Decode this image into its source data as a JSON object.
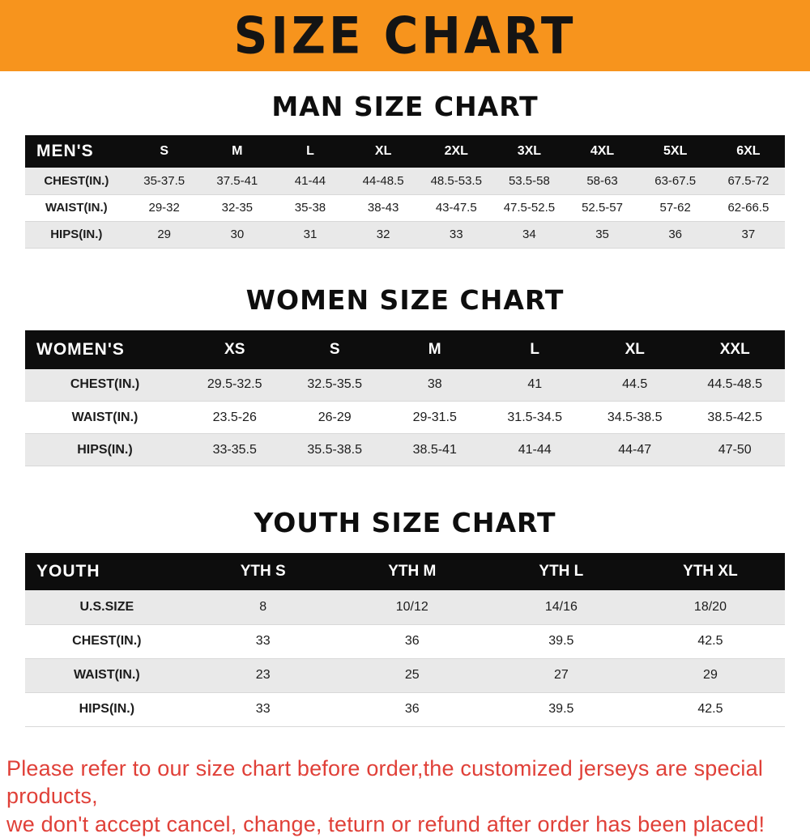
{
  "banner": {
    "title": "SIZE CHART"
  },
  "sections": [
    {
      "heading": "MAN SIZE CHART",
      "table": {
        "header": [
          "MEN'S",
          "S",
          "M",
          "L",
          "XL",
          "2XL",
          "3XL",
          "4XL",
          "5XL",
          "6XL"
        ],
        "rows": [
          [
            "CHEST(IN.)",
            "35-37.5",
            "37.5-41",
            "41-44",
            "44-48.5",
            "48.5-53.5",
            "53.5-58",
            "58-63",
            "63-67.5",
            "67.5-72"
          ],
          [
            "WAIST(IN.)",
            "29-32",
            "32-35",
            "35-38",
            "38-43",
            "43-47.5",
            "47.5-52.5",
            "52.5-57",
            "57-62",
            "62-66.5"
          ],
          [
            "HIPS(IN.)",
            "29",
            "30",
            "31",
            "32",
            "33",
            "34",
            "35",
            "36",
            "37"
          ]
        ]
      }
    },
    {
      "heading": "WOMEN SIZE CHART",
      "table": {
        "header": [
          "WOMEN'S",
          "XS",
          "S",
          "M",
          "L",
          "XL",
          "XXL"
        ],
        "rows": [
          [
            "CHEST(IN.)",
            "29.5-32.5",
            "32.5-35.5",
            "38",
            "41",
            "44.5",
            "44.5-48.5"
          ],
          [
            "WAIST(IN.)",
            "23.5-26",
            "26-29",
            "29-31.5",
            "31.5-34.5",
            "34.5-38.5",
            "38.5-42.5"
          ],
          [
            "HIPS(IN.)",
            "33-35.5",
            "35.5-38.5",
            "38.5-41",
            "41-44",
            "44-47",
            "47-50"
          ]
        ]
      }
    },
    {
      "heading": "YOUTH SIZE CHART",
      "table": {
        "header": [
          "YOUTH",
          "YTH S",
          "YTH M",
          "YTH L",
          "YTH XL"
        ],
        "rows": [
          [
            "U.S.SIZE",
            "8",
            "10/12",
            "14/16",
            "18/20"
          ],
          [
            "CHEST(IN.)",
            "33",
            "36",
            "39.5",
            "42.5"
          ],
          [
            "WAIST(IN.)",
            "23",
            "25",
            "27",
            "29"
          ],
          [
            "HIPS(IN.)",
            "33",
            "36",
            "39.5",
            "42.5"
          ]
        ]
      }
    }
  ],
  "footer": {
    "line1": "Please refer to our size chart before order,the customized jerseys are special products,",
    "line2": "we don't accept cancel, change, teturn or refund after order has been placed!"
  },
  "colors": {
    "banner_orange": "#f7941d",
    "table_header_black": "#0d0d0d",
    "row_stripe_gray": "#e9e9e9",
    "footer_red": "#e04038"
  }
}
